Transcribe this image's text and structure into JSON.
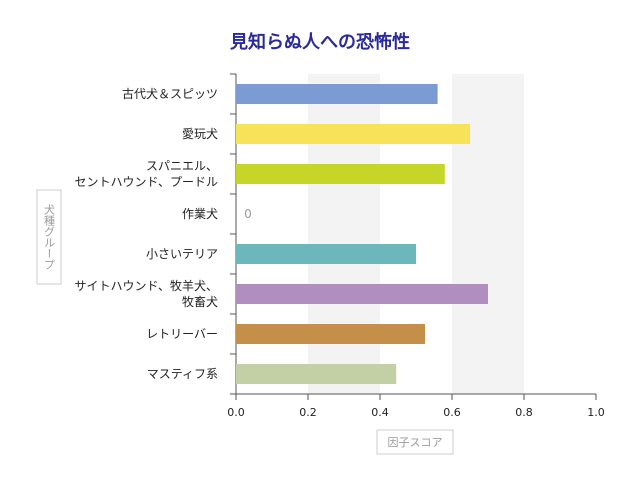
{
  "chart_data": {
    "type": "bar",
    "orientation": "horizontal",
    "title": "見知らぬ人への恐怖性",
    "xlabel": "因子スコア",
    "ylabel": "犬種グループ",
    "xlim": [
      0,
      1.0
    ],
    "xticks": [
      "0.0",
      "0.2",
      "0.4",
      "0.6",
      "0.8",
      "1.0"
    ],
    "categories": [
      [
        "古代犬＆スピッツ"
      ],
      [
        "愛玩犬"
      ],
      [
        "スパニエル、",
        "セントハウンド、プードル"
      ],
      [
        "作業犬"
      ],
      [
        "小さいテリア"
      ],
      [
        "サイトハウンド、牧羊犬、",
        "牧畜犬"
      ],
      [
        "レトリーバー"
      ],
      [
        "マスティフ系"
      ]
    ],
    "values": [
      0.56,
      0.65,
      0.58,
      0,
      0.5,
      0.7,
      0.525,
      0.445
    ],
    "colors": [
      "#7b9bd2",
      "#f7e25a",
      "#c6d629",
      "#aaaaaa",
      "#6bb7bb",
      "#b08ebf",
      "#c48f48",
      "#c3d0a5"
    ],
    "data_labels": {
      "3": "0"
    },
    "grid": "alternating vertical bands"
  }
}
